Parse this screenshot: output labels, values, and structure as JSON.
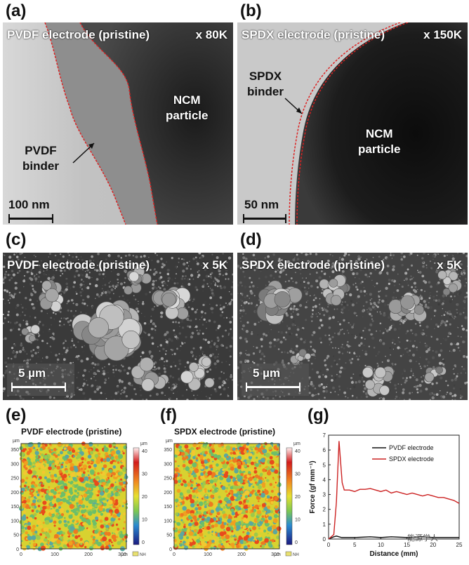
{
  "panels": {
    "a": {
      "letter": "(a)",
      "title": "PVDF electrode (pristine)",
      "mag": "x 80K",
      "particle_label": "NCM\nparticle",
      "binder_label": "PVDF\nbinder",
      "scale": "100 nm"
    },
    "b": {
      "letter": "(b)",
      "title": "SPDX electrode (pristine)",
      "mag": "x 150K",
      "particle_label": "NCM\nparticle",
      "binder_label": "SPDX\nbinder",
      "scale": "50 nm"
    },
    "c": {
      "letter": "(c)",
      "title": "PVDF electrode (pristine)",
      "mag": "x 5K",
      "scale": "5 µm"
    },
    "d": {
      "letter": "(d)",
      "title": "SPDX electrode (pristine)",
      "mag": "x 5K",
      "scale": "5 µm"
    },
    "e": {
      "letter": "(e)",
      "title": "PVDF electrode (pristine)"
    },
    "f": {
      "letter": "(f)",
      "title": "SPDX electrode (pristine)"
    },
    "g": {
      "letter": "(g)"
    }
  },
  "map_axes": {
    "unit": "µm",
    "y_ticks": [
      "350",
      "300",
      "250",
      "200",
      "150",
      "100",
      "50",
      "0"
    ],
    "x_ticks": [
      "0",
      "100",
      "200",
      "300"
    ],
    "cbar_ticks": [
      "40",
      "30",
      "20",
      "10",
      "0"
    ],
    "cbar_unit": "µm",
    "cbar_tag": "NH"
  },
  "chart_data": {
    "type": "line",
    "xlabel": "Distance (mm)",
    "ylabel": "Force (gf mm⁻¹)",
    "xlim": [
      0,
      25
    ],
    "ylim": [
      0,
      7
    ],
    "x_ticks": [
      "0",
      "5",
      "10",
      "15",
      "20",
      "25"
    ],
    "y_ticks": [
      "0",
      "1",
      "2",
      "3",
      "4",
      "5",
      "6",
      "7"
    ],
    "legend": "top-right",
    "series": [
      {
        "name": "PVDF electrode",
        "color": "#111111",
        "x": [
          0,
          1,
          1.5,
          2,
          2.5,
          3,
          5,
          8,
          10,
          12,
          15,
          18,
          20,
          22,
          25
        ],
        "values": [
          0,
          0.15,
          0.2,
          0.15,
          0.1,
          0.1,
          0.1,
          0.15,
          0.1,
          0.15,
          0.1,
          0.15,
          0.1,
          0.1,
          0.1
        ]
      },
      {
        "name": "SPDX electrode",
        "color": "#cc2222",
        "x": [
          0,
          1,
          1.5,
          2,
          2.3,
          2.6,
          3,
          4,
          5,
          6,
          7,
          8,
          9,
          10,
          11,
          12,
          13,
          14,
          15,
          16,
          17,
          18,
          19,
          20,
          21,
          22,
          23,
          24,
          25
        ],
        "values": [
          0,
          0.3,
          2.5,
          6.6,
          5.2,
          3.8,
          3.3,
          3.3,
          3.2,
          3.35,
          3.35,
          3.4,
          3.3,
          3.2,
          3.3,
          3.1,
          3.2,
          3.1,
          3.0,
          3.1,
          3.0,
          2.9,
          3.0,
          2.9,
          2.8,
          2.8,
          2.7,
          2.6,
          2.4
        ]
      }
    ]
  },
  "watermark": "能源学人"
}
